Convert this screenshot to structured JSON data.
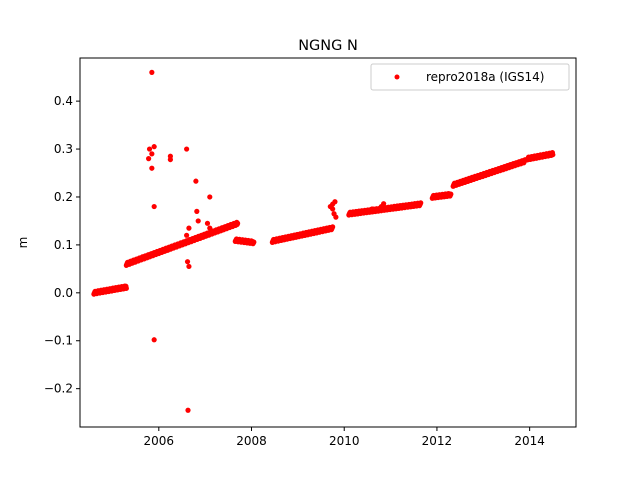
{
  "chart_data": {
    "type": "scatter",
    "title": "NGNG N",
    "xlabel": "",
    "ylabel": "m",
    "xlim": [
      2004.3,
      2015.0
    ],
    "ylim": [
      -0.28,
      0.49
    ],
    "xticks": [
      2006,
      2008,
      2010,
      2012,
      2014
    ],
    "xtick_labels": [
      "2006",
      "2008",
      "2010",
      "2012",
      "2014"
    ],
    "yticks": [
      -0.2,
      -0.1,
      0.0,
      0.1,
      0.2,
      0.3,
      0.4
    ],
    "ytick_labels": [
      "−0.2",
      "−0.1",
      "0.0",
      "0.1",
      "0.2",
      "0.3",
      "0.4"
    ],
    "grid": false,
    "legend_position": "top-right",
    "series": [
      {
        "name": "repro2018a (IGS14)",
        "color": "#ff0000",
        "marker": "circle",
        "segments": [
          {
            "x0": 2004.6,
            "x1": 2005.3,
            "y0": 0.0,
            "y1": 0.012
          },
          {
            "x0": 2005.3,
            "x1": 2007.7,
            "y0": 0.06,
            "y1": 0.145
          },
          {
            "x0": 2007.65,
            "x1": 2008.05,
            "y0": 0.11,
            "y1": 0.105
          },
          {
            "x0": 2008.45,
            "x1": 2009.75,
            "y0": 0.108,
            "y1": 0.135
          },
          {
            "x0": 2010.1,
            "x1": 2011.65,
            "y0": 0.165,
            "y1": 0.185
          },
          {
            "x0": 2011.9,
            "x1": 2012.3,
            "y0": 0.2,
            "y1": 0.205
          },
          {
            "x0": 2012.35,
            "x1": 2013.9,
            "y0": 0.225,
            "y1": 0.275
          },
          {
            "x0": 2013.95,
            "x1": 2014.5,
            "y0": 0.28,
            "y1": 0.29
          }
        ],
        "extra_points": [
          {
            "x": 2005.85,
            "y": 0.46
          },
          {
            "x": 2005.8,
            "y": 0.3
          },
          {
            "x": 2005.85,
            "y": 0.29
          },
          {
            "x": 2005.9,
            "y": 0.305
          },
          {
            "x": 2005.78,
            "y": 0.28
          },
          {
            "x": 2005.85,
            "y": 0.26
          },
          {
            "x": 2005.9,
            "y": 0.18
          },
          {
            "x": 2005.9,
            "y": -0.098
          },
          {
            "x": 2006.25,
            "y": 0.285
          },
          {
            "x": 2006.25,
            "y": 0.278
          },
          {
            "x": 2006.6,
            "y": 0.3
          },
          {
            "x": 2006.62,
            "y": 0.065
          },
          {
            "x": 2006.65,
            "y": 0.055
          },
          {
            "x": 2006.63,
            "y": -0.245
          },
          {
            "x": 2006.65,
            "y": 0.135
          },
          {
            "x": 2006.8,
            "y": 0.233
          },
          {
            "x": 2006.82,
            "y": 0.17
          },
          {
            "x": 2006.85,
            "y": 0.15
          },
          {
            "x": 2007.1,
            "y": 0.2
          },
          {
            "x": 2007.05,
            "y": 0.145
          },
          {
            "x": 2007.1,
            "y": 0.135
          },
          {
            "x": 2006.6,
            "y": 0.12
          },
          {
            "x": 2006.9,
            "y": 0.115
          },
          {
            "x": 2009.7,
            "y": 0.18
          },
          {
            "x": 2009.75,
            "y": 0.185
          },
          {
            "x": 2009.8,
            "y": 0.19
          },
          {
            "x": 2009.75,
            "y": 0.175
          },
          {
            "x": 2009.78,
            "y": 0.165
          },
          {
            "x": 2009.82,
            "y": 0.158
          },
          {
            "x": 2010.6,
            "y": 0.175
          },
          {
            "x": 2010.8,
            "y": 0.18
          },
          {
            "x": 2010.85,
            "y": 0.186
          }
        ]
      }
    ]
  }
}
